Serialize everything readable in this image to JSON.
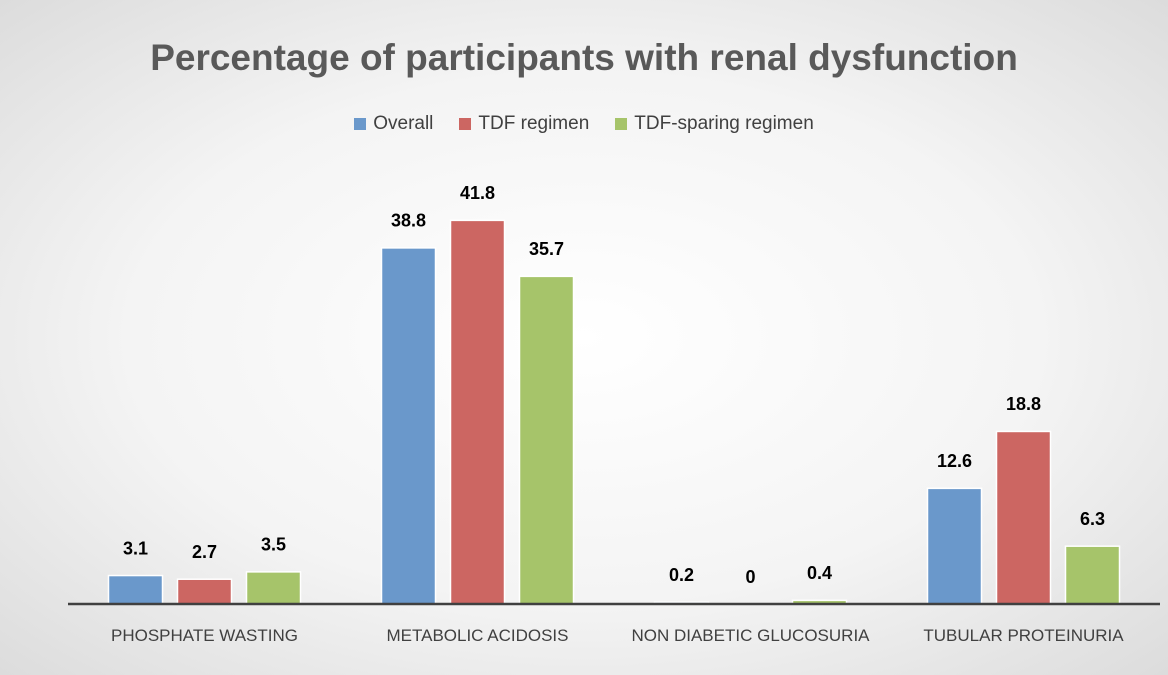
{
  "chart_data": {
    "type": "bar",
    "title": "Percentage of participants with renal dysfunction",
    "categories": [
      "PHOSPHATE WASTING",
      "METABOLIC ACIDOSIS",
      "NON DIABETIC GLUCOSURIA",
      "TUBULAR PROTEINURIA"
    ],
    "series": [
      {
        "name": "Overall",
        "color": "#6a98cb",
        "values": [
          3.1,
          38.8,
          0.2,
          12.6
        ]
      },
      {
        "name": "TDF regimen",
        "color": "#cc6662",
        "values": [
          2.7,
          41.8,
          0,
          18.8
        ]
      },
      {
        "name": "TDF-sparing regimen",
        "color": "#a6c46a",
        "values": [
          3.5,
          35.7,
          0.4,
          6.3
        ]
      }
    ],
    "ylim": [
      0,
      45
    ],
    "grid": false,
    "legend": "top"
  }
}
